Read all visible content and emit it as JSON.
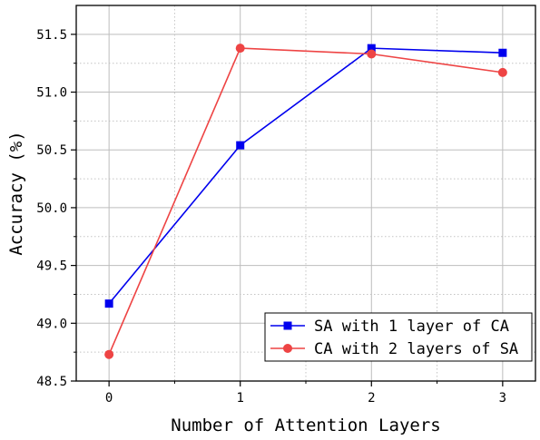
{
  "chart_data": {
    "type": "line",
    "title": "",
    "xlabel": "Number of Attention Layers",
    "ylabel": "Accuracy (%)",
    "x": [
      0,
      1,
      2,
      3
    ],
    "x_tick_labels": [
      "0",
      "1",
      "2",
      "3"
    ],
    "xlim": [
      -0.25,
      3.25
    ],
    "ylim": [
      48.5,
      51.75
    ],
    "y_ticks": [
      48.5,
      49.0,
      49.5,
      50.0,
      50.5,
      51.0,
      51.5
    ],
    "y_tick_labels": [
      "48.5",
      "49.0",
      "49.5",
      "50.0",
      "50.5",
      "51.0",
      "51.5"
    ],
    "grid": true,
    "legend_position": "lower-right",
    "series": [
      {
        "name": "SA with 1 layer of CA",
        "values": [
          49.17,
          50.54,
          51.38,
          51.34
        ],
        "color": "#0000ee",
        "marker": "square"
      },
      {
        "name": "CA with 2 layers of SA",
        "values": [
          48.73,
          51.38,
          51.33,
          51.17
        ],
        "color": "#ee4444",
        "marker": "circle"
      }
    ]
  }
}
